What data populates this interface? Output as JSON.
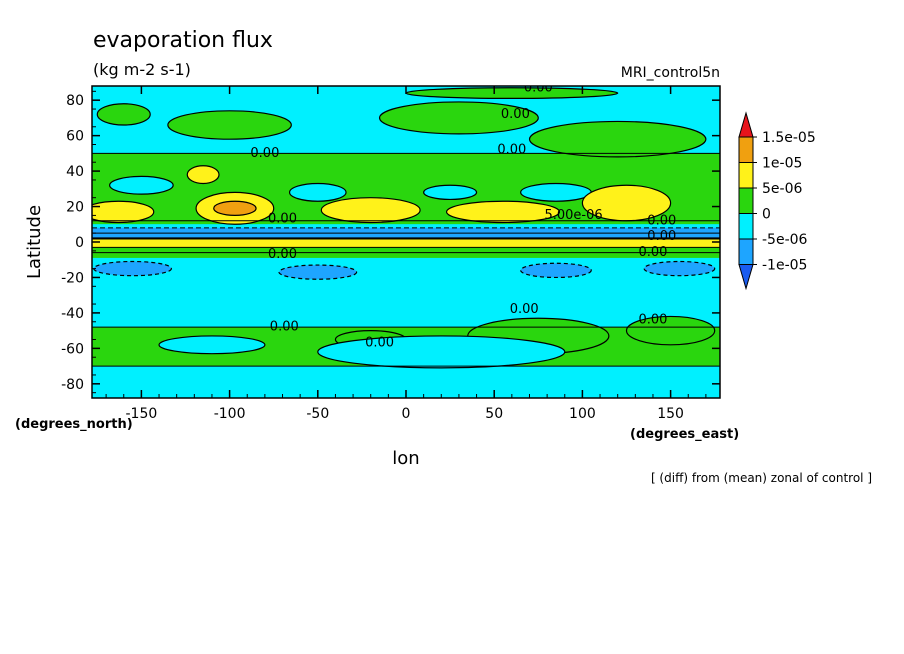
{
  "chart_data": {
    "type": "heatmap",
    "title": "evaporation flux",
    "units": "(kg m-2 s-1)",
    "run_label": "MRI_control5n",
    "xlabel": "lon",
    "ylabel": "Latitude",
    "x_units": "(degrees_east)",
    "y_units": "(degrees_north)",
    "note": "[ (diff) from (mean) zonal of control ]",
    "xlim": [
      -178,
      178
    ],
    "ylim": [
      -88,
      88
    ],
    "x_ticks": [
      -150,
      -100,
      -50,
      0,
      50,
      100,
      150
    ],
    "y_ticks": [
      -80,
      -60,
      -40,
      -20,
      0,
      20,
      40,
      60,
      80
    ],
    "x_tick_labels": [
      "-150",
      "-100",
      "-50",
      "0",
      "50",
      "100",
      "150"
    ],
    "y_tick_labels": [
      "-80",
      "-60",
      "-40",
      "-20",
      "0",
      "20",
      "40",
      "60",
      "80"
    ],
    "colorbar": {
      "labels": [
        "1.5e-05",
        "1e-05",
        "5e-06",
        "0",
        "-5e-06",
        "-1e-05"
      ],
      "bins": [
        {
          "range": "> 1.5e-05",
          "color": "#e8141c"
        },
        {
          "range": "1e-05 to 1.5e-05",
          "color": "#f0a010"
        },
        {
          "range": "5e-06 to 1e-05",
          "color": "#fff21a"
        },
        {
          "range": "0 to 5e-06",
          "color": "#2ad60e"
        },
        {
          "range": "-5e-06 to 0",
          "color": "#00f0ff"
        },
        {
          "range": "-1e-05 to -5e-06",
          "color": "#1ea5ff"
        },
        {
          "range": "< -1e-05",
          "color": "#1a5cf0"
        }
      ]
    },
    "contour_labels": [
      {
        "text": "0.00",
        "lon": 75,
        "lat": 85
      },
      {
        "text": "0.00",
        "lon": 62,
        "lat": 70
      },
      {
        "text": "0.00",
        "lon": -80,
        "lat": 48
      },
      {
        "text": "0.00",
        "lon": 60,
        "lat": 50
      },
      {
        "text": "5.00e-06",
        "lon": 95,
        "lat": 13
      },
      {
        "text": "0.00",
        "lon": -70,
        "lat": 11
      },
      {
        "text": "0.00",
        "lon": 145,
        "lat": 10
      },
      {
        "text": "0.00",
        "lon": 145,
        "lat": 1
      },
      {
        "text": "0.00",
        "lon": 140,
        "lat": -8
      },
      {
        "text": "0.00",
        "lon": -70,
        "lat": -9
      },
      {
        "text": "0.00",
        "lon": 67,
        "lat": -40
      },
      {
        "text": "0.00",
        "lon": -69,
        "lat": -50
      },
      {
        "text": "0.00",
        "lon": 140,
        "lat": -46
      },
      {
        "text": "0.00",
        "lon": -15,
        "lat": -59
      }
    ]
  }
}
